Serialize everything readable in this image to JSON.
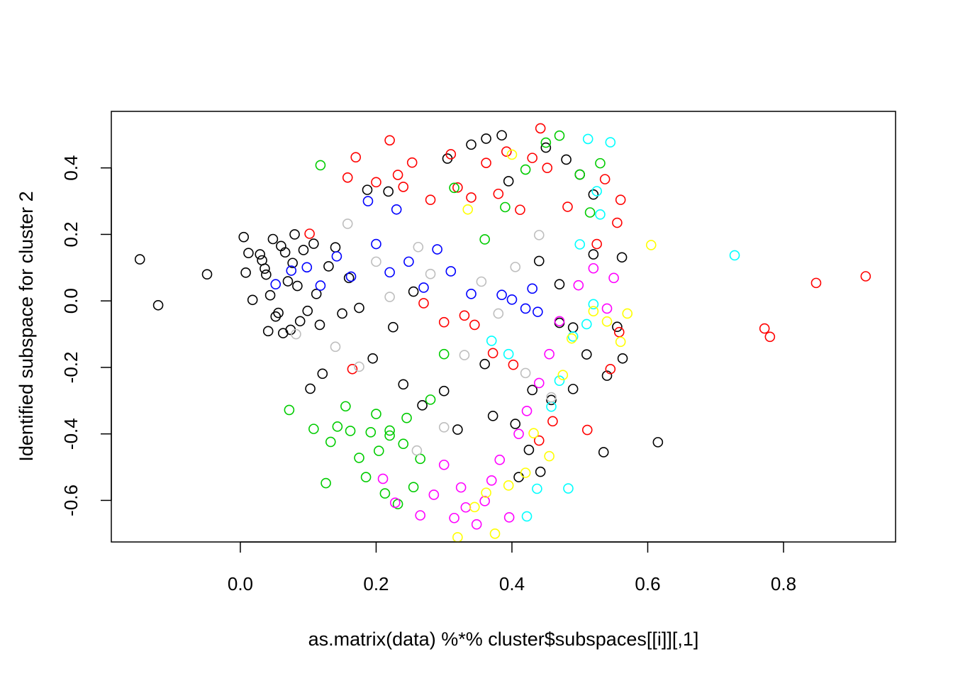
{
  "chart_data": {
    "type": "scatter",
    "title": "",
    "xlabel": "as.matrix(data) %*% cluster$subspaces[[i]][,1]",
    "ylabel": "Identified subspace for cluster 2",
    "xlim": [
      -0.19,
      0.965
    ],
    "ylim": [
      -0.725,
      0.57
    ],
    "xticks": [
      0.0,
      0.2,
      0.4,
      0.6,
      0.8
    ],
    "xtick_labels": [
      "0.0",
      "0.2",
      "0.4",
      "0.6",
      "0.8"
    ],
    "yticks": [
      -0.6,
      -0.4,
      -0.2,
      0.0,
      0.2,
      0.4
    ],
    "ytick_labels": [
      "-0.6",
      "-0.4",
      "-0.2",
      "0.0",
      "0.2",
      "0.4"
    ],
    "grid": false,
    "legend": "none",
    "marker": "open-circle",
    "series": [
      {
        "color": "#000000",
        "points": [
          [
            -0.148,
            0.125
          ],
          [
            -0.121,
            -0.013
          ],
          [
            -0.049,
            0.08
          ],
          [
            0.005,
            0.192
          ],
          [
            0.008,
            0.085
          ],
          [
            0.012,
            0.144
          ],
          [
            0.018,
            0.003
          ],
          [
            0.029,
            0.14
          ],
          [
            0.032,
            0.122
          ],
          [
            0.036,
            0.097
          ],
          [
            0.038,
            0.079
          ],
          [
            0.041,
            -0.091
          ],
          [
            0.044,
            0.017
          ],
          [
            0.048,
            0.186
          ],
          [
            0.052,
            -0.047
          ],
          [
            0.056,
            -0.036
          ],
          [
            0.06,
            0.165
          ],
          [
            0.063,
            -0.097
          ],
          [
            0.066,
            0.146
          ],
          [
            0.07,
            0.059
          ],
          [
            0.074,
            -0.087
          ],
          [
            0.077,
            0.114
          ],
          [
            0.08,
            0.2
          ],
          [
            0.084,
            0.045
          ],
          [
            0.088,
            -0.061
          ],
          [
            0.093,
            0.153
          ],
          [
            0.099,
            -0.03
          ],
          [
            0.103,
            -0.264
          ],
          [
            0.108,
            0.172
          ],
          [
            0.112,
            0.021
          ],
          [
            0.117,
            -0.072
          ],
          [
            0.121,
            -0.219
          ],
          [
            0.13,
            0.104
          ],
          [
            0.14,
            0.161
          ],
          [
            0.15,
            -0.038
          ],
          [
            0.16,
            0.069
          ],
          [
            0.175,
            -0.021
          ],
          [
            0.187,
            0.334
          ],
          [
            0.195,
            -0.173
          ],
          [
            0.218,
            0.329
          ],
          [
            0.225,
            -0.079
          ],
          [
            0.24,
            -0.251
          ],
          [
            0.255,
            0.028
          ],
          [
            0.268,
            -0.314
          ],
          [
            0.3,
            -0.271
          ],
          [
            0.305,
            0.428
          ],
          [
            0.32,
            -0.387
          ],
          [
            0.34,
            0.47
          ],
          [
            0.36,
            -0.19
          ],
          [
            0.362,
            0.488
          ],
          [
            0.372,
            -0.346
          ],
          [
            0.385,
            0.498
          ],
          [
            0.395,
            0.36
          ],
          [
            0.405,
            -0.37
          ],
          [
            0.41,
            -0.53
          ],
          [
            0.425,
            -0.448
          ],
          [
            0.43,
            -0.268
          ],
          [
            0.442,
            -0.514
          ],
          [
            0.458,
            -0.298
          ],
          [
            0.47,
            -0.066
          ],
          [
            0.49,
            -0.265
          ],
          [
            0.51,
            -0.161
          ],
          [
            0.52,
            0.14
          ],
          [
            0.535,
            -0.455
          ],
          [
            0.54,
            -0.225
          ],
          [
            0.555,
            -0.078
          ],
          [
            0.562,
            0.131
          ],
          [
            0.563,
            -0.173
          ],
          [
            0.615,
            -0.425
          ],
          [
            0.45,
            0.461
          ],
          [
            0.48,
            0.425
          ],
          [
            0.5,
            0.38
          ],
          [
            0.52,
            0.32
          ],
          [
            0.47,
            0.05
          ],
          [
            0.49,
            -0.08
          ],
          [
            0.44,
            0.12
          ]
        ]
      },
      {
        "color": "#ff0000",
        "points": [
          [
            0.102,
            0.202
          ],
          [
            0.158,
            0.371
          ],
          [
            0.17,
            0.432
          ],
          [
            0.2,
            0.357
          ],
          [
            0.22,
            0.483
          ],
          [
            0.232,
            0.379
          ],
          [
            0.24,
            0.343
          ],
          [
            0.253,
            0.416
          ],
          [
            0.27,
            -0.007
          ],
          [
            0.28,
            0.304
          ],
          [
            0.3,
            -0.064
          ],
          [
            0.31,
            0.441
          ],
          [
            0.32,
            0.341
          ],
          [
            0.33,
            -0.044
          ],
          [
            0.34,
            0.311
          ],
          [
            0.345,
            -0.072
          ],
          [
            0.362,
            0.415
          ],
          [
            0.372,
            -0.157
          ],
          [
            0.38,
            0.322
          ],
          [
            0.392,
            0.449
          ],
          [
            0.402,
            -0.192
          ],
          [
            0.412,
            0.274
          ],
          [
            0.43,
            0.43
          ],
          [
            0.442,
            0.519
          ],
          [
            0.452,
            0.4
          ],
          [
            0.46,
            -0.362
          ],
          [
            0.482,
            0.283
          ],
          [
            0.511,
            -0.388
          ],
          [
            0.525,
            0.171
          ],
          [
            0.537,
            0.366
          ],
          [
            0.545,
            -0.205
          ],
          [
            0.555,
            0.235
          ],
          [
            0.558,
            -0.094
          ],
          [
            0.56,
            0.304
          ],
          [
            0.772,
            -0.083
          ],
          [
            0.78,
            -0.108
          ],
          [
            0.848,
            0.054
          ],
          [
            0.921,
            0.074
          ],
          [
            0.165,
            -0.205
          ],
          [
            0.44,
            -0.42
          ]
        ]
      },
      {
        "color": "#00cc00",
        "points": [
          [
            0.072,
            -0.328
          ],
          [
            0.108,
            -0.385
          ],
          [
            0.118,
            0.408
          ],
          [
            0.126,
            -0.548
          ],
          [
            0.133,
            -0.424
          ],
          [
            0.143,
            -0.378
          ],
          [
            0.155,
            -0.317
          ],
          [
            0.162,
            -0.391
          ],
          [
            0.175,
            -0.472
          ],
          [
            0.185,
            -0.53
          ],
          [
            0.192,
            -0.395
          ],
          [
            0.204,
            -0.451
          ],
          [
            0.213,
            -0.579
          ],
          [
            0.22,
            -0.405
          ],
          [
            0.232,
            -0.611
          ],
          [
            0.245,
            -0.352
          ],
          [
            0.255,
            -0.56
          ],
          [
            0.265,
            -0.475
          ],
          [
            0.28,
            -0.297
          ],
          [
            0.3,
            -0.16
          ],
          [
            0.315,
            0.34
          ],
          [
            0.36,
            0.185
          ],
          [
            0.39,
            0.282
          ],
          [
            0.42,
            0.395
          ],
          [
            0.45,
            0.476
          ],
          [
            0.47,
            0.497
          ],
          [
            0.5,
            0.38
          ],
          [
            0.515,
            0.266
          ],
          [
            0.53,
            0.414
          ],
          [
            0.22,
            -0.39
          ],
          [
            0.24,
            -0.43
          ],
          [
            0.2,
            -0.34
          ]
        ]
      },
      {
        "color": "#0000ff",
        "points": [
          [
            0.052,
            0.05
          ],
          [
            0.075,
            0.091
          ],
          [
            0.098,
            0.101
          ],
          [
            0.118,
            0.046
          ],
          [
            0.142,
            0.134
          ],
          [
            0.163,
            0.073
          ],
          [
            0.188,
            0.3
          ],
          [
            0.2,
            0.171
          ],
          [
            0.22,
            0.086
          ],
          [
            0.23,
            0.275
          ],
          [
            0.248,
            0.118
          ],
          [
            0.27,
            0.04
          ],
          [
            0.29,
            0.155
          ],
          [
            0.31,
            0.089
          ],
          [
            0.34,
            0.021
          ],
          [
            0.385,
            0.018
          ],
          [
            0.4,
            0.004
          ],
          [
            0.42,
            -0.023
          ],
          [
            0.43,
            0.037
          ],
          [
            0.438,
            -0.033
          ]
        ]
      },
      {
        "color": "#00ffff",
        "points": [
          [
            0.37,
            -0.12
          ],
          [
            0.395,
            -0.16
          ],
          [
            0.422,
            -0.648
          ],
          [
            0.437,
            -0.565
          ],
          [
            0.458,
            -0.318
          ],
          [
            0.47,
            -0.24
          ],
          [
            0.483,
            -0.564
          ],
          [
            0.49,
            -0.107
          ],
          [
            0.5,
            0.17
          ],
          [
            0.512,
            0.487
          ],
          [
            0.525,
            0.33
          ],
          [
            0.53,
            0.26
          ],
          [
            0.545,
            0.477
          ],
          [
            0.728,
            0.137
          ],
          [
            0.51,
            -0.07
          ],
          [
            0.52,
            -0.01
          ]
        ]
      },
      {
        "color": "#ff00ff",
        "points": [
          [
            0.21,
            -0.535
          ],
          [
            0.228,
            -0.607
          ],
          [
            0.265,
            -0.645
          ],
          [
            0.285,
            -0.583
          ],
          [
            0.3,
            -0.493
          ],
          [
            0.315,
            -0.653
          ],
          [
            0.325,
            -0.561
          ],
          [
            0.332,
            -0.621
          ],
          [
            0.348,
            -0.672
          ],
          [
            0.36,
            -0.602
          ],
          [
            0.37,
            -0.54
          ],
          [
            0.382,
            -0.478
          ],
          [
            0.396,
            -0.651
          ],
          [
            0.41,
            -0.4
          ],
          [
            0.422,
            -0.331
          ],
          [
            0.44,
            -0.247
          ],
          [
            0.455,
            -0.16
          ],
          [
            0.47,
            -0.061
          ],
          [
            0.498,
            0.047
          ],
          [
            0.52,
            0.098
          ],
          [
            0.54,
            -0.023
          ],
          [
            0.55,
            0.069
          ]
        ]
      },
      {
        "color": "#ffff00",
        "points": [
          [
            0.32,
            -0.711
          ],
          [
            0.345,
            -0.62
          ],
          [
            0.362,
            -0.577
          ],
          [
            0.375,
            -0.7
          ],
          [
            0.395,
            -0.555
          ],
          [
            0.42,
            -0.517
          ],
          [
            0.432,
            -0.398
          ],
          [
            0.455,
            -0.467
          ],
          [
            0.475,
            -0.223
          ],
          [
            0.488,
            -0.113
          ],
          [
            0.52,
            -0.031
          ],
          [
            0.54,
            -0.062
          ],
          [
            0.56,
            -0.123
          ],
          [
            0.57,
            -0.038
          ],
          [
            0.605,
            0.168
          ],
          [
            0.4,
            0.44
          ],
          [
            0.335,
            0.275
          ]
        ]
      },
      {
        "color": "#bebebe",
        "points": [
          [
            0.082,
            -0.1
          ],
          [
            0.14,
            -0.138
          ],
          [
            0.158,
            0.232
          ],
          [
            0.175,
            -0.198
          ],
          [
            0.2,
            0.118
          ],
          [
            0.22,
            0.012
          ],
          [
            0.262,
            0.162
          ],
          [
            0.28,
            0.081
          ],
          [
            0.33,
            -0.163
          ],
          [
            0.355,
            0.058
          ],
          [
            0.38,
            -0.038
          ],
          [
            0.405,
            0.102
          ],
          [
            0.42,
            -0.217
          ],
          [
            0.44,
            0.198
          ],
          [
            0.458,
            -0.29
          ],
          [
            0.3,
            -0.38
          ],
          [
            0.26,
            -0.45
          ]
        ]
      }
    ]
  }
}
